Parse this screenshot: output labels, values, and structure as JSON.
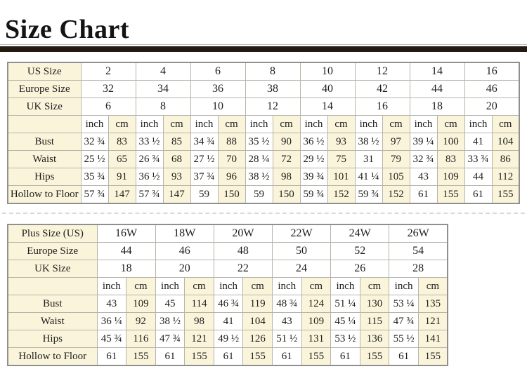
{
  "title": "Size Chart",
  "colors": {
    "cream": "#faf5da",
    "cell_border": "#b7b4aa",
    "table_border": "#8f8f8f",
    "divider_bar": "#241a12",
    "dashed_separator": "#d9d9d9",
    "text": "#1e1e1e"
  },
  "chart_data": [
    {
      "type": "table",
      "name": "standard-size-table",
      "header_rows": [
        {
          "label": "US Size",
          "values": [
            "2",
            "4",
            "6",
            "8",
            "10",
            "12",
            "14",
            "16"
          ]
        },
        {
          "label": "Europe Size",
          "values": [
            "32",
            "34",
            "36",
            "38",
            "40",
            "42",
            "44",
            "46"
          ]
        },
        {
          "label": "UK Size",
          "values": [
            "6",
            "8",
            "10",
            "12",
            "14",
            "16",
            "18",
            "20"
          ]
        }
      ],
      "units": [
        "inch",
        "cm"
      ],
      "measure_rows": [
        {
          "label": "Bust",
          "values": [
            "32 ¾",
            "83",
            "33 ½",
            "85",
            "34 ¾",
            "88",
            "35 ½",
            "90",
            "36 ½",
            "93",
            "38 ½",
            "97",
            "39 ¼",
            "100",
            "41",
            "104"
          ]
        },
        {
          "label": "Waist",
          "values": [
            "25 ½",
            "65",
            "26 ¾",
            "68",
            "27 ½",
            "70",
            "28 ¼",
            "72",
            "29 ½",
            "75",
            "31",
            "79",
            "32 ¾",
            "83",
            "33 ¾",
            "86"
          ]
        },
        {
          "label": "Hips",
          "values": [
            "35 ¾",
            "91",
            "36 ½",
            "93",
            "37 ¾",
            "96",
            "38 ½",
            "98",
            "39 ¾",
            "101",
            "41 ¼",
            "105",
            "43",
            "109",
            "44",
            "112"
          ]
        },
        {
          "label": "Hollow to Floor",
          "values": [
            "57 ¾",
            "147",
            "57 ¾",
            "147",
            "59",
            "150",
            "59",
            "150",
            "59 ¾",
            "152",
            "59 ¾",
            "152",
            "61",
            "155",
            "61",
            "155"
          ]
        }
      ]
    },
    {
      "type": "table",
      "name": "plus-size-table",
      "header_rows": [
        {
          "label": "Plus Size (US)",
          "values": [
            "16W",
            "18W",
            "20W",
            "22W",
            "24W",
            "26W"
          ]
        },
        {
          "label": "Europe Size",
          "values": [
            "44",
            "46",
            "48",
            "50",
            "52",
            "54"
          ]
        },
        {
          "label": "UK Size",
          "values": [
            "18",
            "20",
            "22",
            "24",
            "26",
            "28"
          ]
        }
      ],
      "units": [
        "inch",
        "cm"
      ],
      "measure_rows": [
        {
          "label": "Bust",
          "values": [
            "43",
            "109",
            "45",
            "114",
            "46 ¾",
            "119",
            "48 ¾",
            "124",
            "51 ¼",
            "130",
            "53 ¼",
            "135"
          ]
        },
        {
          "label": "Waist",
          "values": [
            "36 ¼",
            "92",
            "38 ½",
            "98",
            "41",
            "104",
            "43",
            "109",
            "45 ¼",
            "115",
            "47 ¾",
            "121"
          ]
        },
        {
          "label": "Hips",
          "values": [
            "45 ¾",
            "116",
            "47 ¾",
            "121",
            "49 ½",
            "126",
            "51 ½",
            "131",
            "53 ½",
            "136",
            "55 ½",
            "141"
          ]
        },
        {
          "label": "Hollow to Floor",
          "values": [
            "61",
            "155",
            "61",
            "155",
            "61",
            "155",
            "61",
            "155",
            "61",
            "155",
            "61",
            "155"
          ]
        }
      ]
    }
  ]
}
